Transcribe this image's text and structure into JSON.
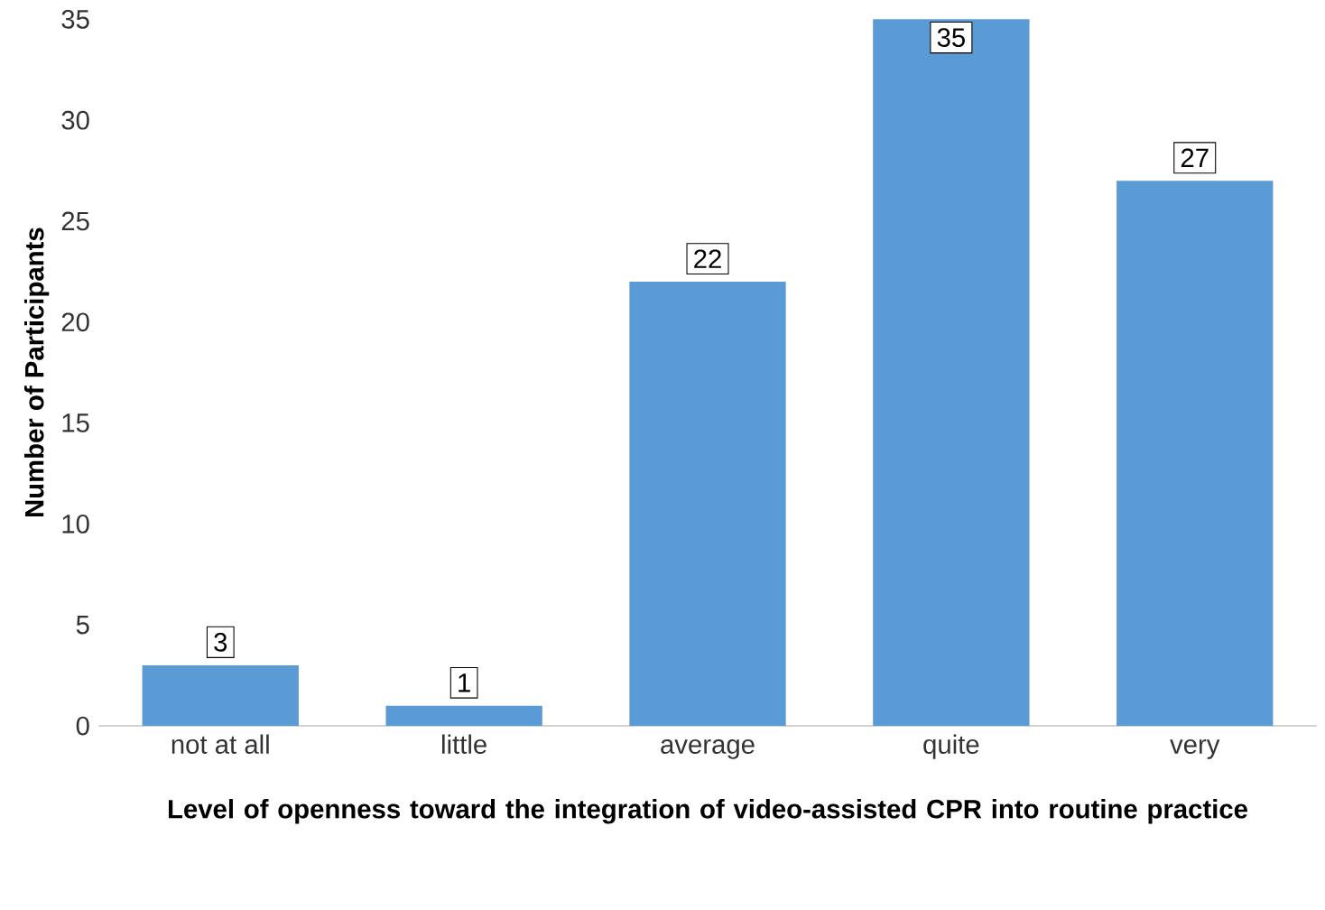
{
  "chart_data": {
    "type": "bar",
    "xlabel": "Level of openness toward the integration of video-assisted CPR into routine practice",
    "ylabel": "Number of Participants",
    "categories": [
      "not at all",
      "little",
      "average",
      "quite",
      "very"
    ],
    "values": [
      3,
      1,
      22,
      35,
      27
    ],
    "color": "#5b9bd5",
    "ylim": [
      0,
      35
    ],
    "yticks": [
      0,
      5,
      10,
      15,
      20,
      25,
      30,
      35
    ],
    "grid": false,
    "data_labels": true
  }
}
